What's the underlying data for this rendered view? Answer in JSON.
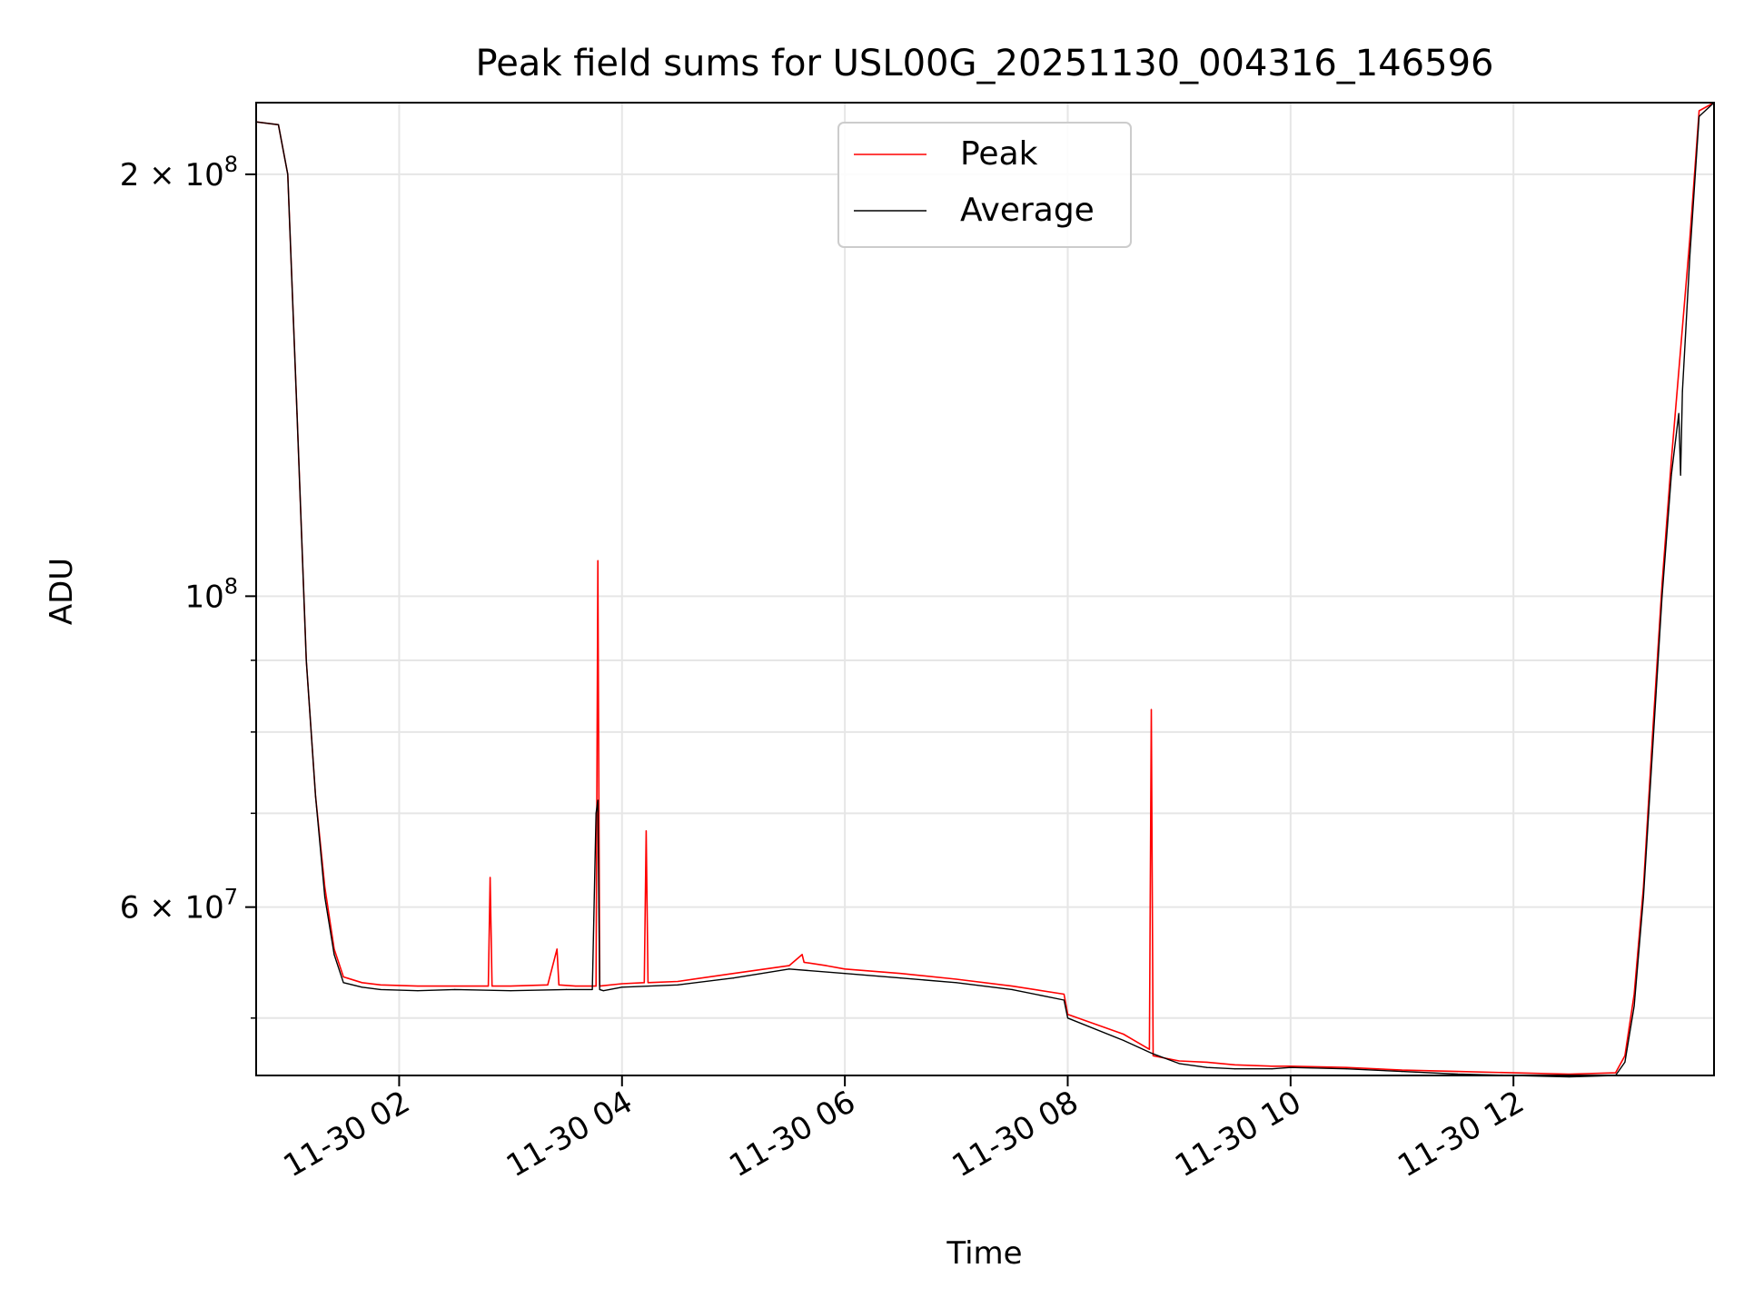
{
  "chart_data": {
    "type": "line",
    "title": "Peak field sums for USL00G_20251130_004316_146596",
    "xlabel": "Time",
    "ylabel": "ADU",
    "y_scale": "log",
    "grid": true,
    "legend_position": "upper center",
    "xlim": [
      "2025-11-30 00:43",
      "2025-11-30 13:48"
    ],
    "ylim": [
      45500000,
      225000000
    ],
    "x_ticks": [
      {
        "value": "2025-11-30 02:00",
        "label": "11-30 02"
      },
      {
        "value": "2025-11-30 04:00",
        "label": "11-30 04"
      },
      {
        "value": "2025-11-30 06:00",
        "label": "11-30 06"
      },
      {
        "value": "2025-11-30 08:00",
        "label": "11-30 08"
      },
      {
        "value": "2025-11-30 10:00",
        "label": "11-30 10"
      },
      {
        "value": "2025-11-30 12:00",
        "label": "11-30 12"
      }
    ],
    "y_ticks": [
      {
        "value": 200000000,
        "base": "2 × 10",
        "exp": "8"
      },
      {
        "value": 100000000,
        "base": "10",
        "exp": "8"
      },
      {
        "value": 60000000,
        "base": "6 × 10",
        "exp": "7"
      }
    ],
    "y_minor_ticks": [
      50000000,
      70000000,
      80000000,
      90000000
    ],
    "series": [
      {
        "name": "Peak",
        "color": "#ff0000",
        "x": [
          "2025-11-30 00:43",
          "2025-11-30 00:55",
          "2025-11-30 01:00",
          "2025-11-30 01:05",
          "2025-11-30 01:10",
          "2025-11-30 01:15",
          "2025-11-30 01:20",
          "2025-11-30 01:25",
          "2025-11-30 01:30",
          "2025-11-30 01:40",
          "2025-11-30 01:50",
          "2025-11-30 02:10",
          "2025-11-30 02:30",
          "2025-11-30 02:48",
          "2025-11-30 02:49",
          "2025-11-30 02:50",
          "2025-11-30 03:00",
          "2025-11-30 03:20",
          "2025-11-30 03:25",
          "2025-11-30 03:26",
          "2025-11-30 03:35",
          "2025-11-30 03:46",
          "2025-11-30 03:47",
          "2025-11-30 03:48",
          "2025-11-30 04:00",
          "2025-11-30 04:12",
          "2025-11-30 04:13",
          "2025-11-30 04:14",
          "2025-11-30 04:30",
          "2025-11-30 05:00",
          "2025-11-30 05:30",
          "2025-11-30 05:37",
          "2025-11-30 05:38",
          "2025-11-30 05:50",
          "2025-11-30 06:00",
          "2025-11-30 06:30",
          "2025-11-30 07:00",
          "2025-11-30 07:30",
          "2025-11-30 07:58",
          "2025-11-30 08:00",
          "2025-11-30 08:30",
          "2025-11-30 08:44",
          "2025-11-30 08:45",
          "2025-11-30 08:46",
          "2025-11-30 09:00",
          "2025-11-30 09:15",
          "2025-11-30 09:30",
          "2025-11-30 09:50",
          "2025-11-30 10:00",
          "2025-11-30 10:30",
          "2025-11-30 11:00",
          "2025-11-30 11:30",
          "2025-11-30 12:00",
          "2025-11-30 12:30",
          "2025-11-30 12:55",
          "2025-11-30 13:00",
          "2025-11-30 13:05",
          "2025-11-30 13:10",
          "2025-11-30 13:15",
          "2025-11-30 13:20",
          "2025-11-30 13:25",
          "2025-11-30 13:30",
          "2025-11-30 13:35",
          "2025-11-30 13:40",
          "2025-11-30 13:48"
        ],
        "values": [
          218000000,
          217000000,
          200000000,
          135000000,
          90000000,
          72000000,
          62000000,
          56000000,
          53500000,
          53000000,
          52800000,
          52700000,
          52700000,
          52700000,
          63000000,
          52700000,
          52700000,
          52800000,
          56000000,
          52800000,
          52700000,
          52700000,
          106000000,
          52700000,
          52900000,
          53000000,
          68000000,
          53000000,
          53100000,
          53800000,
          54500000,
          55500000,
          54800000,
          54500000,
          54200000,
          53800000,
          53300000,
          52700000,
          52000000,
          50300000,
          48700000,
          47500000,
          83000000,
          47000000,
          46600000,
          46500000,
          46300000,
          46200000,
          46200000,
          46100000,
          45900000,
          45800000,
          45700000,
          45600000,
          45700000,
          47000000,
          52000000,
          62000000,
          80000000,
          102000000,
          125000000,
          150000000,
          180000000,
          222000000,
          225000000
        ]
      },
      {
        "name": "Average",
        "color": "#000000",
        "x": [
          "2025-11-30 00:43",
          "2025-11-30 00:55",
          "2025-11-30 01:00",
          "2025-11-30 01:05",
          "2025-11-30 01:10",
          "2025-11-30 01:15",
          "2025-11-30 01:20",
          "2025-11-30 01:25",
          "2025-11-30 01:30",
          "2025-11-30 01:40",
          "2025-11-30 01:50",
          "2025-11-30 02:10",
          "2025-11-30 02:30",
          "2025-11-30 03:00",
          "2025-11-30 03:30",
          "2025-11-30 03:44",
          "2025-11-30 03:46",
          "2025-11-30 03:47",
          "2025-11-30 03:48",
          "2025-11-30 03:50",
          "2025-11-30 04:00",
          "2025-11-30 04:30",
          "2025-11-30 05:00",
          "2025-11-30 05:30",
          "2025-11-30 06:00",
          "2025-11-30 06:30",
          "2025-11-30 07:00",
          "2025-11-30 07:30",
          "2025-11-30 07:58",
          "2025-11-30 08:00",
          "2025-11-30 08:30",
          "2025-11-30 08:45",
          "2025-11-30 09:00",
          "2025-11-30 09:15",
          "2025-11-30 09:30",
          "2025-11-30 09:50",
          "2025-11-30 10:00",
          "2025-11-30 10:30",
          "2025-11-30 11:00",
          "2025-11-30 11:30",
          "2025-11-30 12:00",
          "2025-11-30 12:30",
          "2025-11-30 12:55",
          "2025-11-30 13:00",
          "2025-11-30 13:05",
          "2025-11-30 13:10",
          "2025-11-30 13:15",
          "2025-11-30 13:20",
          "2025-11-30 13:25",
          "2025-11-30 13:29",
          "2025-11-30 13:30",
          "2025-11-30 13:31",
          "2025-11-30 13:35",
          "2025-11-30 13:40",
          "2025-11-30 13:48"
        ],
        "values": [
          218000000,
          217000000,
          200000000,
          135000000,
          90000000,
          72000000,
          61000000,
          55500000,
          53000000,
          52600000,
          52400000,
          52300000,
          52400000,
          52300000,
          52400000,
          52400000,
          70000000,
          71500000,
          52400000,
          52300000,
          52600000,
          52800000,
          53400000,
          54200000,
          53800000,
          53400000,
          53000000,
          52400000,
          51500000,
          50000000,
          48200000,
          47200000,
          46400000,
          46100000,
          46000000,
          46000000,
          46100000,
          46000000,
          45800000,
          45600000,
          45500000,
          45400000,
          45500000,
          46500000,
          51000000,
          61000000,
          78000000,
          100000000,
          122000000,
          135000000,
          122000000,
          140000000,
          175000000,
          220000000,
          225000000
        ]
      }
    ]
  }
}
